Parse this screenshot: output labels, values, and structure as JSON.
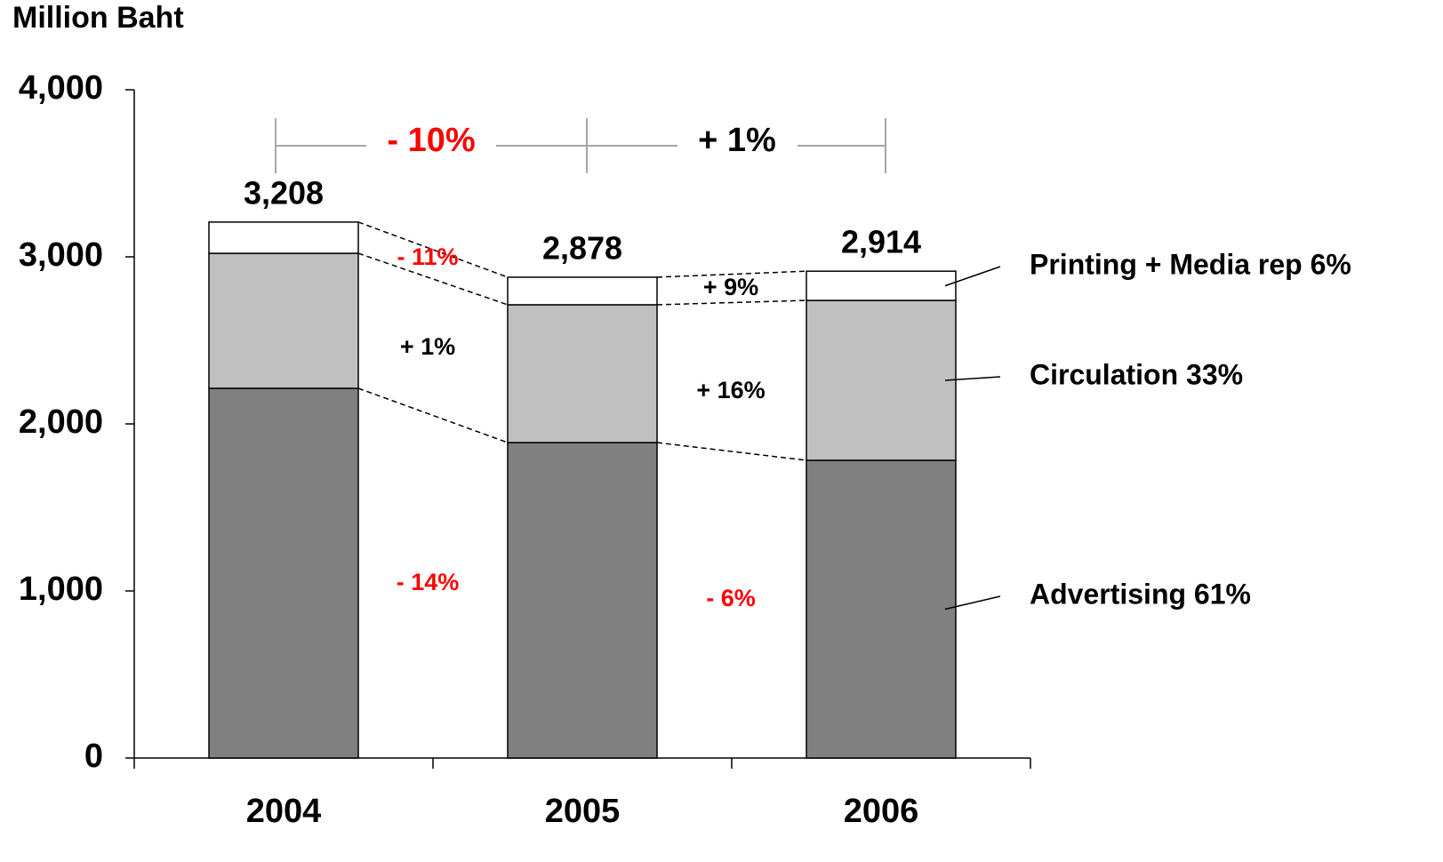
{
  "chart_data": {
    "type": "stacked_bar",
    "y_axis_label": "Million Baht",
    "categories": [
      "2004",
      "2005",
      "2006"
    ],
    "series": [
      {
        "name": "Advertising 61%",
        "color": "#808080",
        "values": [
          2213,
          1888,
          1782
        ]
      },
      {
        "name": "Circulation 33%",
        "color": "#c0c0c0",
        "values": [
          808,
          825,
          957
        ]
      },
      {
        "name": "Printing + Media rep 6%",
        "color": "#ffffff",
        "values": [
          187,
          165,
          175
        ]
      }
    ],
    "total_labels": [
      "3,208",
      "2,878",
      "2,914"
    ],
    "annotations": [
      {
        "text": "- 10%",
        "color": "#ff0000"
      },
      {
        "text": "+ 1%",
        "color": "#000000"
      },
      {
        "text": "- 11%",
        "color": "#ff0000"
      },
      {
        "text": "+ 9%",
        "color": "#000000"
      },
      {
        "text": "+ 1%",
        "color": "#000000"
      },
      {
        "text": "+ 16%",
        "color": "#000000"
      },
      {
        "text": "- 14%",
        "color": "#ff0000"
      },
      {
        "text": "- 6%",
        "color": "#ff0000"
      }
    ],
    "ylim": [
      0,
      4000
    ],
    "yticks": [
      0,
      {
        "value": 1000,
        "label": "1,000"
      },
      {
        "value": 2000,
        "label": "2,000"
      },
      {
        "value": 3000,
        "label": "3,000"
      },
      {
        "value": 4000,
        "label": "4,000"
      }
    ]
  }
}
